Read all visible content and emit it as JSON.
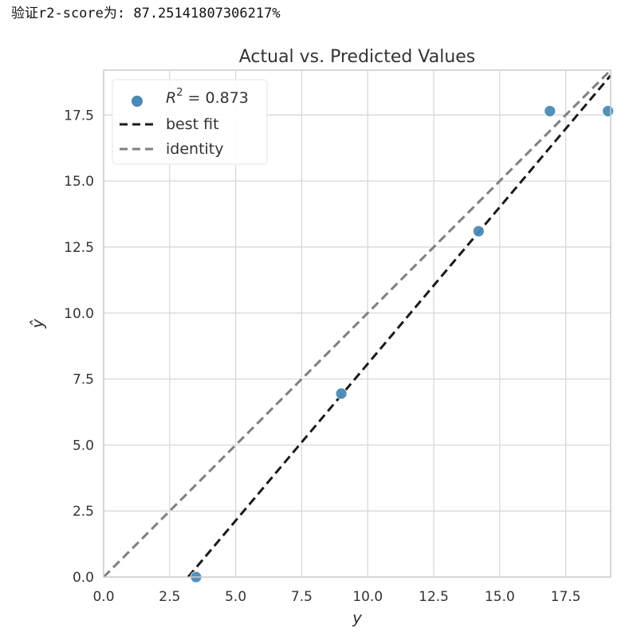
{
  "output_text": "验证r2-score为: 87.25141807306217%",
  "chart_data": {
    "type": "scatter",
    "title": "Actual vs. Predicted Values",
    "xlabel": "y",
    "ylabel": "ŷ",
    "xlim": [
      0,
      19.2
    ],
    "ylim": [
      0,
      19.2
    ],
    "xticks": [
      "0.0",
      "2.5",
      "5.0",
      "7.5",
      "10.0",
      "12.5",
      "15.0",
      "17.5"
    ],
    "yticks": [
      "0.0",
      "2.5",
      "5.0",
      "7.5",
      "10.0",
      "12.5",
      "15.0",
      "17.5"
    ],
    "grid": true,
    "legend_position": "top-left",
    "points": {
      "x": [
        3.5,
        9.0,
        14.2,
        16.9,
        19.1
      ],
      "y": [
        0.0,
        6.95,
        13.1,
        17.65,
        17.65
      ]
    },
    "best_fit": {
      "x": [
        3.2,
        19.2
      ],
      "y": [
        0.0,
        19.0
      ]
    },
    "identity": {
      "x": [
        0,
        19.2
      ],
      "y": [
        0,
        19.2
      ]
    },
    "legend": {
      "r2_prefix": "R",
      "r2_sup": "2",
      "r2_value": " = 0.873",
      "best_fit": "best fit",
      "identity": "identity"
    },
    "colors": {
      "points": "#4c8ab5",
      "best_fit": "#1a1a1a",
      "identity": "#808080",
      "grid": "#d9d9d9",
      "frame": "#cccccc"
    }
  }
}
